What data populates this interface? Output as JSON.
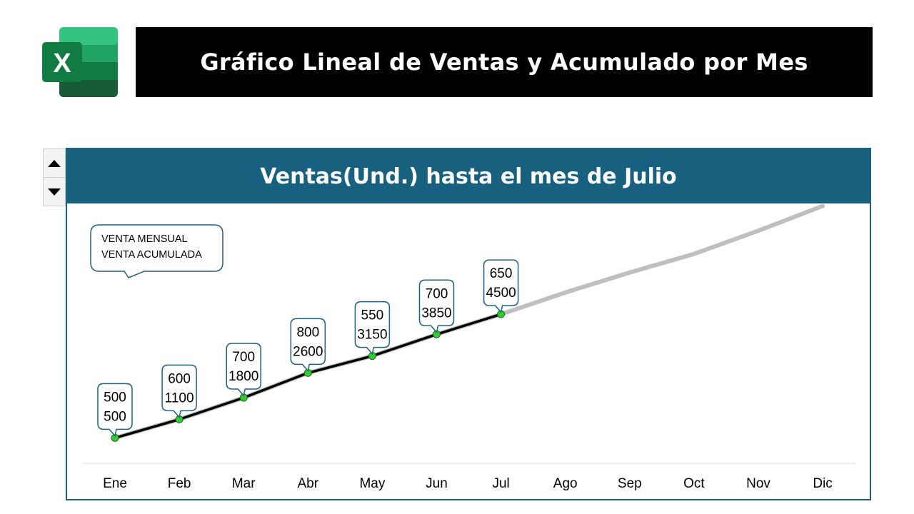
{
  "page": {
    "title": "Gráfico Lineal de Ventas y Acumulado por Mes",
    "logo_letter": "X",
    "logo_icon": "excel-icon"
  },
  "spinner": {
    "up_icon": "triangle-up-icon",
    "down_icon": "triangle-down-icon"
  },
  "chart_data": {
    "type": "line",
    "title": "Ventas(Und.) hasta el mes de Julio",
    "categories": [
      "Ene",
      "Feb",
      "Mar",
      "Abr",
      "May",
      "Jun",
      "Jul",
      "Ago",
      "Sep",
      "Oct",
      "Nov",
      "Dic"
    ],
    "series": [
      {
        "values": [
          500,
          1100,
          1800,
          2600,
          3150,
          3850,
          4500,
          null,
          null,
          null,
          null,
          null
        ],
        "color": "#000000"
      },
      {
        "values": [
          500,
          1100,
          1800,
          2600,
          3150,
          3850,
          4500,
          5200,
          5850,
          6450,
          7200,
          8000
        ],
        "color": "#bfbfbf"
      }
    ],
    "monthly_sales": [
      500,
      600,
      700,
      800,
      550,
      700,
      650
    ],
    "data_labels": [
      [
        "500",
        "500"
      ],
      [
        "600",
        "1100"
      ],
      [
        "700",
        "1800"
      ],
      [
        "800",
        "2600"
      ],
      [
        "550",
        "3150"
      ],
      [
        "700",
        "3850"
      ],
      [
        "650",
        "4500"
      ]
    ],
    "legend_callout": [
      "VENTA MENSUAL",
      "VENTA ACUMULADA"
    ],
    "marker_color": "#33cc33",
    "header_color": "#17607f",
    "ylim": [
      0,
      9000
    ],
    "grid": false,
    "legend_position": "top-left"
  }
}
